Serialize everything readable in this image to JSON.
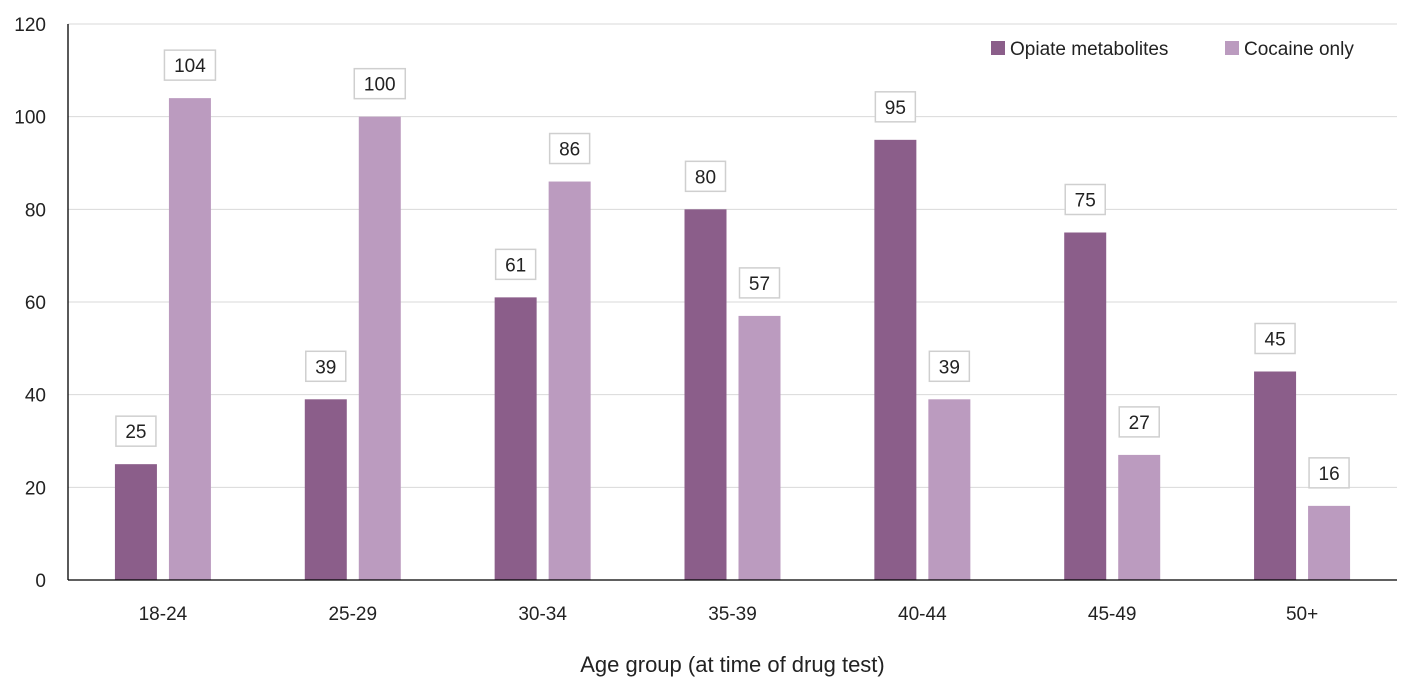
{
  "chart_data": {
    "type": "bar",
    "categories": [
      "18-24",
      "25-29",
      "30-34",
      "35-39",
      "40-44",
      "45-49",
      "50+"
    ],
    "series": [
      {
        "name": "Opiate metabolites",
        "values": [
          25,
          39,
          61,
          80,
          95,
          75,
          45
        ],
        "color": "#8b5e8a"
      },
      {
        "name": "Cocaine only",
        "values": [
          104,
          100,
          86,
          57,
          39,
          27,
          16
        ],
        "color": "#bb9bbf"
      }
    ],
    "xlabel": "Age group (at time of drug test)",
    "ylabel": "",
    "ylim": [
      0,
      120
    ],
    "yticks": [
      0,
      20,
      40,
      60,
      80,
      100,
      120
    ],
    "grid": true,
    "legend_position": "top-right",
    "data_labels": true
  }
}
